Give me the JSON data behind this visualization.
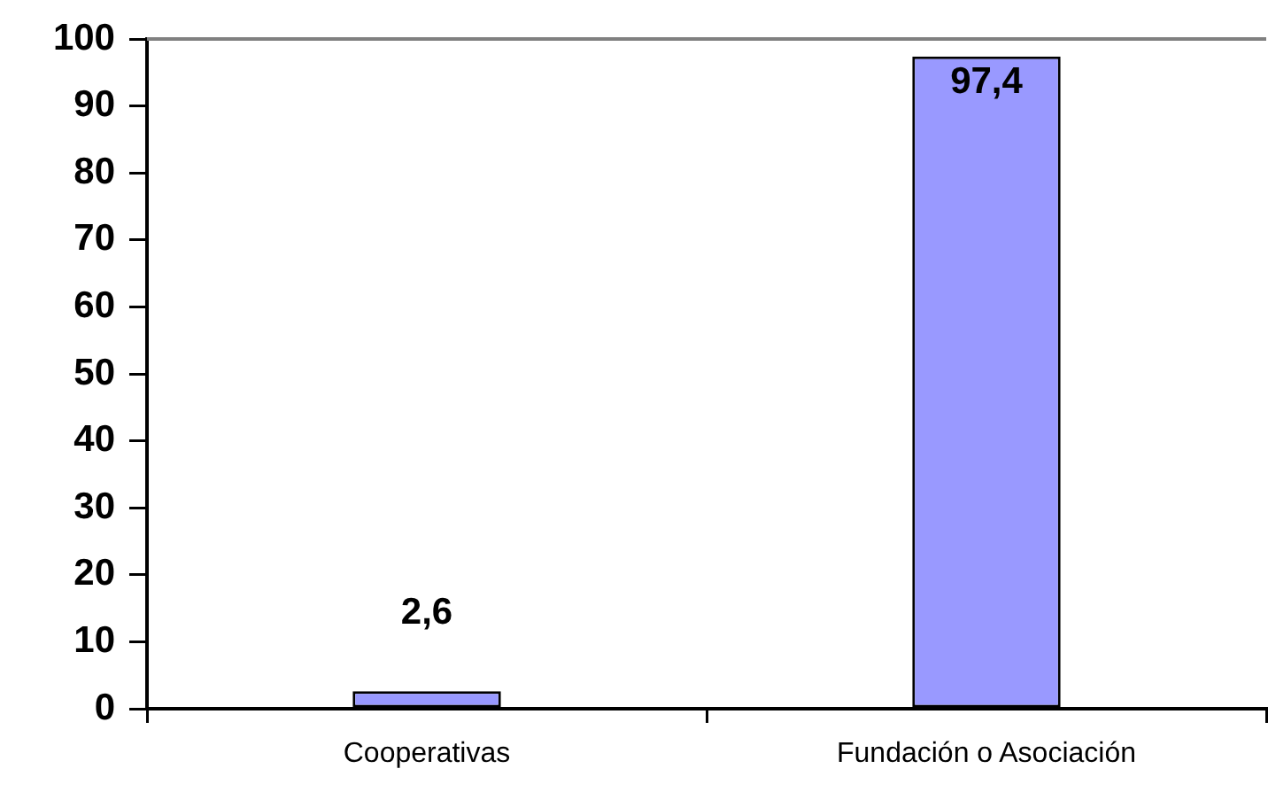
{
  "chart_data": {
    "type": "bar",
    "categories": [
      "Cooperativas",
      "Fundación o Asociación"
    ],
    "values": [
      2.6,
      97.4
    ],
    "value_labels": [
      "2,6",
      "97,4"
    ],
    "color": "#9999ff",
    "ylim": [
      0,
      100
    ],
    "yticks": [
      0,
      10,
      20,
      30,
      40,
      50,
      60,
      70,
      80,
      90,
      100
    ]
  }
}
